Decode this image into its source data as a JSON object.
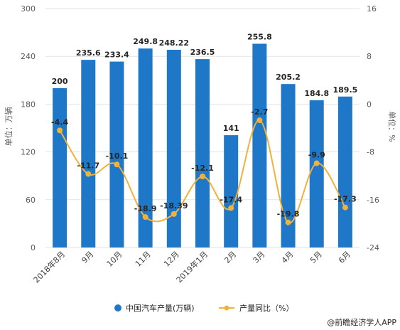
{
  "chart_data": {
    "type": "bar",
    "categories": [
      "2018年8月",
      "9月",
      "10月",
      "11月",
      "12月",
      "2019年1月",
      "2月",
      "3月",
      "4月",
      "5月",
      "6月"
    ],
    "series": [
      {
        "name": "中国汽车产量(万辆)",
        "type": "bar",
        "axis": "left",
        "color": "#1f77c8",
        "values": [
          200,
          235.6,
          233.4,
          249.8,
          248.22,
          236.5,
          141,
          255.8,
          205.2,
          184.8,
          189.5
        ],
        "labels": [
          "200",
          "235.6",
          "233.4",
          "249.8",
          "248.22",
          "236.5",
          "141",
          "255.8",
          "205.2",
          "184.8",
          "189.5"
        ]
      },
      {
        "name": "产量同比（%）",
        "type": "line",
        "axis": "right",
        "color": "#f0b23c",
        "values": [
          -4.4,
          -11.7,
          -10.1,
          -18.9,
          -18.39,
          -12.1,
          -17.4,
          -2.7,
          -19.8,
          -9.9,
          -17.3
        ],
        "labels": [
          "-4.4",
          "-11.7",
          "-10.1",
          "-18.9",
          "-18.39",
          "-12.1",
          "-17.4",
          "-2.7",
          "-19.8",
          "-9.9",
          "-17.3"
        ]
      }
    ],
    "y_left": {
      "label": "单位：万辆",
      "ylim": [
        0,
        300
      ],
      "ticks": [
        "0",
        "60",
        "120",
        "180",
        "240",
        "300"
      ]
    },
    "y_right": {
      "label": "单位：%",
      "ylim": [
        -24,
        16
      ],
      "ticks": [
        "-24",
        "-16",
        "-8",
        "0",
        "8",
        "16"
      ]
    },
    "grid": true,
    "legend": {
      "position": "bottom",
      "items": [
        "中国汽车产量(万辆)",
        "产量同比（%）"
      ]
    }
  },
  "source": "@前瞻经济学人APP"
}
